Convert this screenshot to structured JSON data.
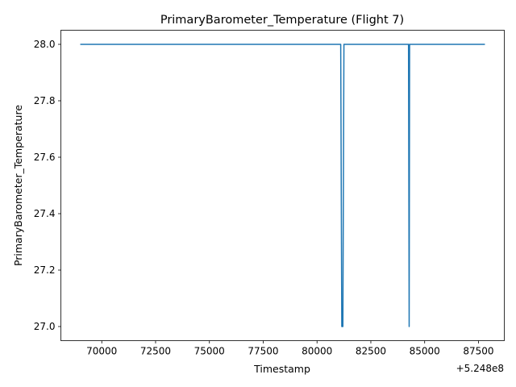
{
  "chart_data": {
    "type": "line",
    "title": "PrimaryBarometer_Temperature (Flight 7)",
    "xlabel": "Timestamp",
    "ylabel": "PrimaryBarometer_Temperature",
    "x_offset_label": "+5.248e8",
    "x_offset": 524800000,
    "xlim": [
      524868100,
      524888700
    ],
    "ylim": [
      26.95,
      28.05
    ],
    "x_ticks": [
      524870000,
      524872500,
      524875000,
      524877500,
      524880000,
      524882500,
      524885000,
      524887500
    ],
    "x_tick_labels": [
      "70000",
      "72500",
      "75000",
      "77500",
      "80000",
      "82500",
      "85000",
      "87500"
    ],
    "y_ticks": [
      27.0,
      27.2,
      27.4,
      27.6,
      27.8,
      28.0
    ],
    "y_tick_labels": [
      "27.0",
      "27.2",
      "27.4",
      "27.6",
      "27.8",
      "28.0"
    ],
    "grid": false,
    "line_color": "#1f77b4",
    "series": [
      {
        "x": [
          524869000,
          524881100,
          524881150,
          524881200,
          524881250,
          524884250,
          524884280,
          524884300,
          524887800
        ],
        "values": [
          28.0,
          28.0,
          27.0,
          27.0,
          28.0,
          28.0,
          27.0,
          28.0,
          28.0
        ]
      }
    ]
  }
}
